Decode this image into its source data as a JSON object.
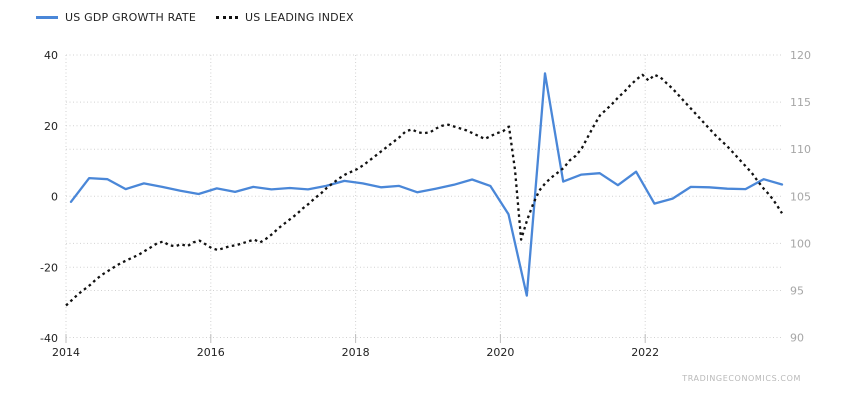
{
  "legend": [
    {
      "label": "US GDP GROWTH RATE",
      "color": "#4a87d8",
      "style": "solid"
    },
    {
      "label": "US LEADING INDEX",
      "color": "#111111",
      "style": "dotted"
    }
  ],
  "watermark": "TRADINGECONOMICS.COM",
  "colors": {
    "gdp_line": "#4a87d8",
    "leading_index_line": "#111111",
    "grid": "#d2d2d2",
    "axis_text_dark": "#222222",
    "axis_text_gray": "#a6a6a6"
  },
  "chart_data": {
    "type": "line",
    "grid": "dotted",
    "legend_position": "top-left",
    "x_axis": {
      "ticks": [
        2014,
        2016,
        2018,
        2020,
        2022
      ],
      "range": [
        2014,
        2023.95
      ]
    },
    "y_axis_left": {
      "ticks": [
        40,
        20,
        0,
        -20,
        -40
      ],
      "range": [
        -40,
        40
      ],
      "series": "US GDP GROWTH RATE"
    },
    "y_axis_right": {
      "ticks": [
        120,
        115,
        110,
        105,
        100,
        95,
        90
      ],
      "range": [
        90,
        120
      ],
      "series": "US LEADING INDEX"
    },
    "series": [
      {
        "name": "US GDP GROWTH RATE",
        "axis": "left",
        "style": "solid",
        "color": "#4a87d8",
        "frequency": "quarterly",
        "start": "2014-Q1",
        "end": "2023-Q4",
        "values": [
          -1.5,
          5.2,
          4.9,
          2.1,
          3.7,
          2.7,
          1.6,
          0.7,
          2.3,
          1.3,
          2.7,
          2.0,
          2.4,
          2.0,
          3.0,
          4.4,
          3.7,
          2.6,
          3.0,
          1.2,
          2.2,
          3.3,
          4.8,
          3.0,
          -5.0,
          -28.0,
          34.8,
          4.2,
          6.2,
          6.6,
          3.2,
          7.0,
          -2.0,
          -0.6,
          2.7,
          2.6,
          2.2,
          2.1,
          4.9,
          3.4
        ]
      },
      {
        "name": "US LEADING INDEX",
        "axis": "right",
        "style": "dotted",
        "color": "#111111",
        "frequency": "monthly",
        "start": "2014-01",
        "end": "2023-11",
        "values": [
          93.4,
          94.0,
          94.6,
          95.1,
          95.6,
          96.2,
          96.7,
          97.1,
          97.5,
          97.9,
          98.2,
          98.5,
          98.8,
          99.2,
          99.6,
          100.0,
          100.2,
          99.8,
          99.7,
          99.9,
          99.7,
          100.1,
          100.3,
          99.9,
          99.5,
          99.3,
          99.5,
          99.7,
          99.8,
          100.0,
          100.2,
          100.4,
          100.1,
          100.5,
          101.0,
          101.6,
          102.1,
          102.6,
          103.1,
          103.7,
          104.2,
          104.8,
          105.3,
          105.9,
          106.4,
          106.9,
          107.3,
          107.6,
          107.9,
          108.3,
          108.8,
          109.3,
          109.8,
          110.3,
          110.8,
          111.3,
          111.9,
          112.1,
          111.8,
          111.7,
          111.8,
          112.2,
          112.5,
          112.6,
          112.4,
          112.2,
          112.0,
          111.7,
          111.4,
          111.1,
          111.4,
          111.7,
          111.9,
          112.4,
          107.8,
          100.4,
          102.5,
          104.2,
          105.6,
          106.4,
          107.0,
          107.5,
          108.0,
          108.8,
          109.3,
          110.1,
          111.3,
          112.5,
          113.6,
          114.2,
          114.8,
          115.5,
          116.1,
          116.8,
          117.4,
          117.9,
          117.3,
          117.9,
          117.6,
          117.0,
          116.4,
          115.7,
          115.0,
          114.3,
          113.6,
          112.9,
          112.2,
          111.5,
          110.9,
          110.3,
          109.6,
          108.9,
          108.2,
          107.5,
          106.6,
          105.8,
          105.1,
          104.2,
          103.2
        ]
      }
    ]
  }
}
